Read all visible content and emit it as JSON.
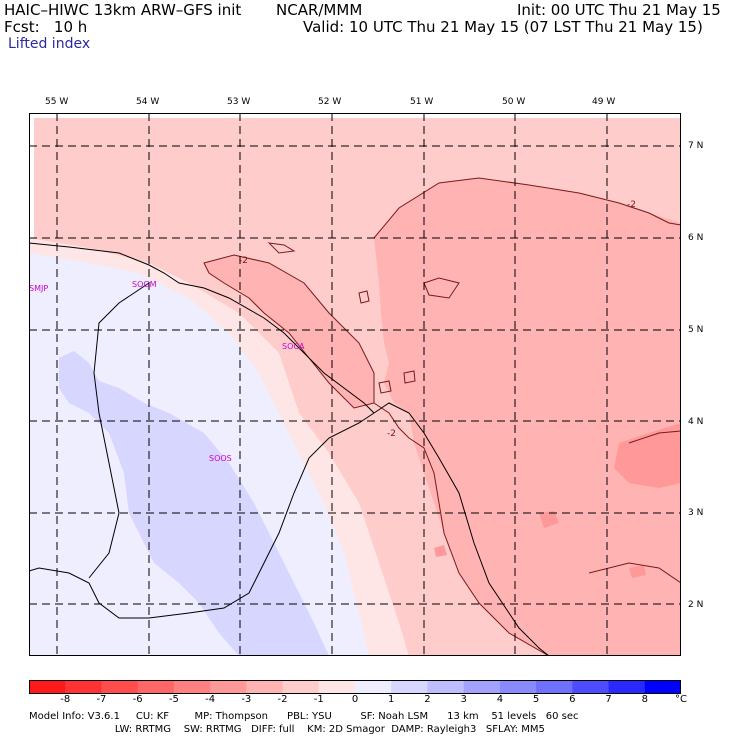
{
  "header": {
    "model": "HAIC–HIWC 13km ARW–GFS init",
    "org": "NCAR/MMM",
    "init": "Init: 00 UTC Thu 21 May 15",
    "fcst": "Fcst:   10 h",
    "valid": "Valid: 10 UTC Thu 21 May 15 (07 LST Thu 21 May 15)",
    "field": "Lifted index"
  },
  "map": {
    "lon_labels": [
      "55 W",
      "54 W",
      "53 W",
      "52 W",
      "51 W",
      "50 W",
      "49 W"
    ],
    "lat_labels": [
      "7 N",
      "6 N",
      "5 N",
      "4 N",
      "3 N",
      "2 N"
    ],
    "stations": [
      "SMJP",
      "SOGM",
      "SOCA",
      "SOOS"
    ],
    "contour_labels": [
      "-2",
      "-2",
      "-2"
    ]
  },
  "colorbar": {
    "labels": [
      "-8",
      "-7",
      "-6",
      "-5",
      "-4",
      "-3",
      "-2",
      "-1",
      "0",
      "1",
      "2",
      "3",
      "4",
      "5",
      "6",
      "7",
      "8"
    ],
    "unit": "°C",
    "colors": [
      "#ff1a1a",
      "#ff3333",
      "#ff4d4d",
      "#ff6666",
      "#ff8080",
      "#ff9999",
      "#ffb3b3",
      "#ffcccc",
      "#ffe6e6",
      "#eeeeff",
      "#d6d6ff",
      "#bdbdff",
      "#a3a3ff",
      "#8a8aff",
      "#7070ff",
      "#4d4dff",
      "#2929ff",
      "#0000ff"
    ]
  },
  "model_info": {
    "line1": "Model Info: V3.6.1     CU: KF        MP: Thompson      PBL: YSU         SF: Noah LSM      13 km    51 levels   60 sec",
    "line2": "                           LW: RRTMG    SW: RRTMG   DIFF: full    KM: 2D Smagor  DAMP: Rayleigh3   SFLAY: MM5"
  }
}
